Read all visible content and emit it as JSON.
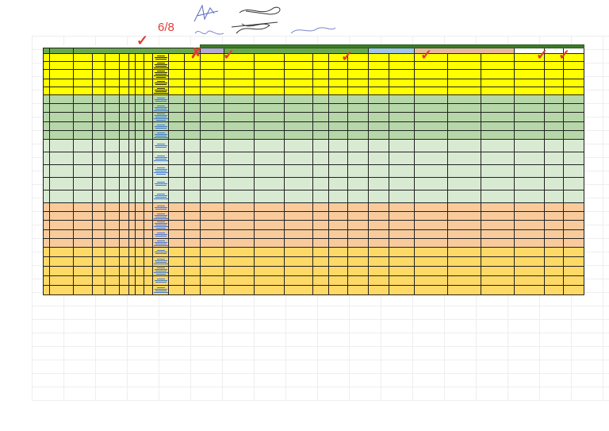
{
  "annotations": {
    "page_label": "6/8",
    "page_label_color": "#e53935",
    "checkmark_glyph": "✓",
    "cross_glyph": "✗"
  },
  "sheet": {
    "column_count": 28,
    "row_groups": [
      {
        "color_name": "yellow",
        "fill": "#ffff00",
        "rows": 5
      },
      {
        "color_name": "green",
        "fill": "#b6d7a8",
        "rows": 5
      },
      {
        "color_name": "light-green",
        "fill": "#d9ead3",
        "rows": 5
      },
      {
        "color_name": "peach",
        "fill": "#f9cb9c",
        "rows": 5
      },
      {
        "color_name": "gold",
        "fill": "#ffd966",
        "rows": 5
      }
    ],
    "header_groups": [
      {
        "name": "left-block",
        "fill": "#6aa84f",
        "span": 13
      },
      {
        "name": "lavender-block",
        "fill": "#b4a7d6",
        "span": 1
      },
      {
        "name": "green-block",
        "fill": "#6aa84f",
        "span": 6
      },
      {
        "name": "blue-block",
        "fill": "#9fc5e8",
        "span": 2
      },
      {
        "name": "peach-block",
        "fill": "#e6b8a2",
        "span": 3
      },
      {
        "name": "white-block",
        "fill": "#ffffff",
        "span": 3
      }
    ],
    "cell_text_note": "Cell text is not legible at the screenshot resolution"
  }
}
